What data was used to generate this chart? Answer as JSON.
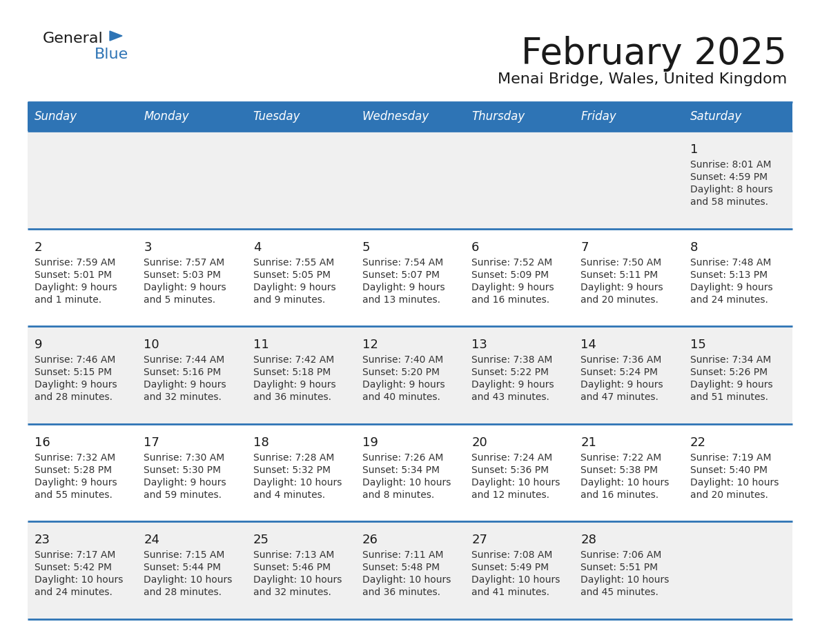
{
  "title": "February 2025",
  "subtitle": "Menai Bridge, Wales, United Kingdom",
  "header_bg": "#2e74b5",
  "header_text_color": "#ffffff",
  "cell_bg_odd": "#f0f0f0",
  "cell_bg_even": "#ffffff",
  "border_color": "#2e74b5",
  "day_names": [
    "Sunday",
    "Monday",
    "Tuesday",
    "Wednesday",
    "Thursday",
    "Friday",
    "Saturday"
  ],
  "title_color": "#1a1a1a",
  "subtitle_color": "#1a1a1a",
  "cell_text_color": "#333333",
  "day_num_color": "#1a1a1a",
  "logo_general_color": "#1a1a1a",
  "logo_blue_color": "#2e74b5",
  "calendar": [
    [
      null,
      null,
      null,
      null,
      null,
      null,
      {
        "day": 1,
        "sunrise": "8:01 AM",
        "sunset": "4:59 PM",
        "daylight": "8 hours",
        "daylight2": "and 58 minutes."
      }
    ],
    [
      {
        "day": 2,
        "sunrise": "7:59 AM",
        "sunset": "5:01 PM",
        "daylight": "9 hours",
        "daylight2": "and 1 minute."
      },
      {
        "day": 3,
        "sunrise": "7:57 AM",
        "sunset": "5:03 PM",
        "daylight": "9 hours",
        "daylight2": "and 5 minutes."
      },
      {
        "day": 4,
        "sunrise": "7:55 AM",
        "sunset": "5:05 PM",
        "daylight": "9 hours",
        "daylight2": "and 9 minutes."
      },
      {
        "day": 5,
        "sunrise": "7:54 AM",
        "sunset": "5:07 PM",
        "daylight": "9 hours",
        "daylight2": "and 13 minutes."
      },
      {
        "day": 6,
        "sunrise": "7:52 AM",
        "sunset": "5:09 PM",
        "daylight": "9 hours",
        "daylight2": "and 16 minutes."
      },
      {
        "day": 7,
        "sunrise": "7:50 AM",
        "sunset": "5:11 PM",
        "daylight": "9 hours",
        "daylight2": "and 20 minutes."
      },
      {
        "day": 8,
        "sunrise": "7:48 AM",
        "sunset": "5:13 PM",
        "daylight": "9 hours",
        "daylight2": "and 24 minutes."
      }
    ],
    [
      {
        "day": 9,
        "sunrise": "7:46 AM",
        "sunset": "5:15 PM",
        "daylight": "9 hours",
        "daylight2": "and 28 minutes."
      },
      {
        "day": 10,
        "sunrise": "7:44 AM",
        "sunset": "5:16 PM",
        "daylight": "9 hours",
        "daylight2": "and 32 minutes."
      },
      {
        "day": 11,
        "sunrise": "7:42 AM",
        "sunset": "5:18 PM",
        "daylight": "9 hours",
        "daylight2": "and 36 minutes."
      },
      {
        "day": 12,
        "sunrise": "7:40 AM",
        "sunset": "5:20 PM",
        "daylight": "9 hours",
        "daylight2": "and 40 minutes."
      },
      {
        "day": 13,
        "sunrise": "7:38 AM",
        "sunset": "5:22 PM",
        "daylight": "9 hours",
        "daylight2": "and 43 minutes."
      },
      {
        "day": 14,
        "sunrise": "7:36 AM",
        "sunset": "5:24 PM",
        "daylight": "9 hours",
        "daylight2": "and 47 minutes."
      },
      {
        "day": 15,
        "sunrise": "7:34 AM",
        "sunset": "5:26 PM",
        "daylight": "9 hours",
        "daylight2": "and 51 minutes."
      }
    ],
    [
      {
        "day": 16,
        "sunrise": "7:32 AM",
        "sunset": "5:28 PM",
        "daylight": "9 hours",
        "daylight2": "and 55 minutes."
      },
      {
        "day": 17,
        "sunrise": "7:30 AM",
        "sunset": "5:30 PM",
        "daylight": "9 hours",
        "daylight2": "and 59 minutes."
      },
      {
        "day": 18,
        "sunrise": "7:28 AM",
        "sunset": "5:32 PM",
        "daylight": "10 hours",
        "daylight2": "and 4 minutes."
      },
      {
        "day": 19,
        "sunrise": "7:26 AM",
        "sunset": "5:34 PM",
        "daylight": "10 hours",
        "daylight2": "and 8 minutes."
      },
      {
        "day": 20,
        "sunrise": "7:24 AM",
        "sunset": "5:36 PM",
        "daylight": "10 hours",
        "daylight2": "and 12 minutes."
      },
      {
        "day": 21,
        "sunrise": "7:22 AM",
        "sunset": "5:38 PM",
        "daylight": "10 hours",
        "daylight2": "and 16 minutes."
      },
      {
        "day": 22,
        "sunrise": "7:19 AM",
        "sunset": "5:40 PM",
        "daylight": "10 hours",
        "daylight2": "and 20 minutes."
      }
    ],
    [
      {
        "day": 23,
        "sunrise": "7:17 AM",
        "sunset": "5:42 PM",
        "daylight": "10 hours",
        "daylight2": "and 24 minutes."
      },
      {
        "day": 24,
        "sunrise": "7:15 AM",
        "sunset": "5:44 PM",
        "daylight": "10 hours",
        "daylight2": "and 28 minutes."
      },
      {
        "day": 25,
        "sunrise": "7:13 AM",
        "sunset": "5:46 PM",
        "daylight": "10 hours",
        "daylight2": "and 32 minutes."
      },
      {
        "day": 26,
        "sunrise": "7:11 AM",
        "sunset": "5:48 PM",
        "daylight": "10 hours",
        "daylight2": "and 36 minutes."
      },
      {
        "day": 27,
        "sunrise": "7:08 AM",
        "sunset": "5:49 PM",
        "daylight": "10 hours",
        "daylight2": "and 41 minutes."
      },
      {
        "day": 28,
        "sunrise": "7:06 AM",
        "sunset": "5:51 PM",
        "daylight": "10 hours",
        "daylight2": "and 45 minutes."
      },
      null
    ]
  ]
}
